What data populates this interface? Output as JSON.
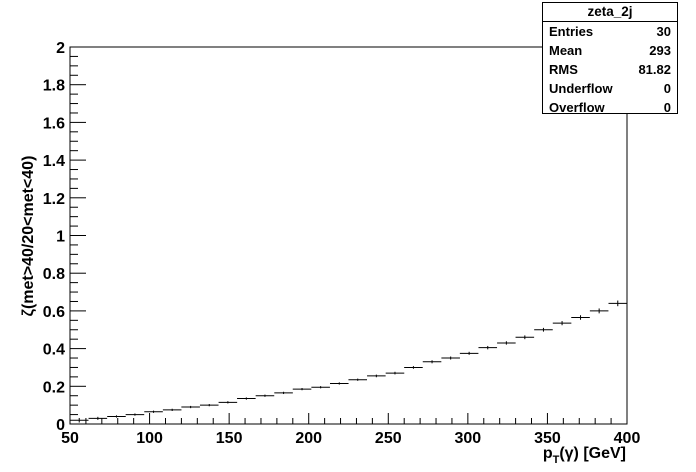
{
  "chart_data": {
    "type": "scatter",
    "histogram_name": "zeta_2j",
    "xlabel_main": "p",
    "xlabel_sub": "T",
    "xlabel_rest": "(γ) [GeV]",
    "ylabel": "ζ(met>40/20<met<40)",
    "xlim": [
      50,
      400
    ],
    "ylim": [
      0,
      2
    ],
    "x_ticks": [
      "50",
      "100",
      "150",
      "200",
      "250",
      "300",
      "350",
      "400"
    ],
    "y_ticks": [
      "0",
      "0.2",
      "0.4",
      "0.6",
      "0.8",
      "1",
      "1.2",
      "1.4",
      "1.6",
      "1.8",
      "2"
    ],
    "grid": false,
    "bin_width": 11.6667,
    "x": [
      55.8,
      67.5,
      79.2,
      90.8,
      102.5,
      114.2,
      125.8,
      137.5,
      149.2,
      160.8,
      172.5,
      184.2,
      195.8,
      207.5,
      219.2,
      230.8,
      242.5,
      254.2,
      265.8,
      277.5,
      289.2,
      300.8,
      312.5,
      324.2,
      335.8,
      347.5,
      359.2,
      370.8,
      382.5,
      394.2
    ],
    "values": [
      0.02,
      0.03,
      0.04,
      0.05,
      0.065,
      0.075,
      0.09,
      0.1,
      0.115,
      0.135,
      0.15,
      0.165,
      0.185,
      0.195,
      0.215,
      0.235,
      0.255,
      0.27,
      0.3,
      0.33,
      0.35,
      0.375,
      0.405,
      0.43,
      0.46,
      0.5,
      0.535,
      0.565,
      0.6,
      0.64
    ],
    "errors": [
      0.012,
      0.008,
      0.006,
      0.006,
      0.006,
      0.006,
      0.006,
      0.006,
      0.006,
      0.006,
      0.006,
      0.006,
      0.006,
      0.006,
      0.006,
      0.006,
      0.007,
      0.007,
      0.007,
      0.008,
      0.008,
      0.008,
      0.009,
      0.009,
      0.01,
      0.01,
      0.011,
      0.012,
      0.013,
      0.015
    ]
  },
  "stats": {
    "title": "zeta_2j",
    "rows": [
      {
        "label": "Entries",
        "value": "30"
      },
      {
        "label": "Mean",
        "value": "293"
      },
      {
        "label": "RMS",
        "value": "81.82"
      },
      {
        "label": "Underflow",
        "value": "0"
      },
      {
        "label": "Overflow",
        "value": "0"
      }
    ]
  }
}
